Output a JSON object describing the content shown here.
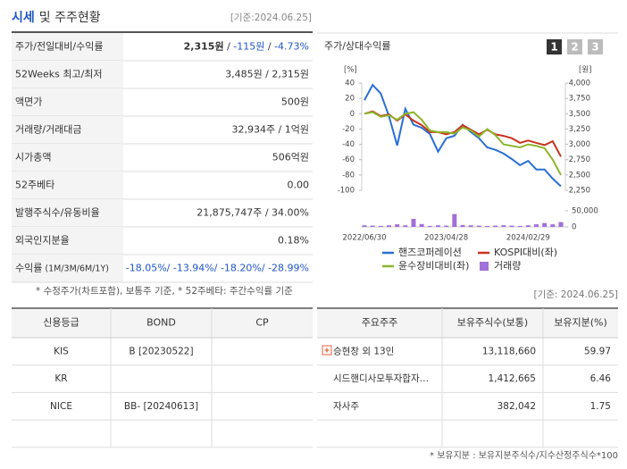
{
  "summary": {
    "title": [
      "시세",
      "및 주주현황"
    ],
    "date": "[기준:2024.06.25]",
    "rows": [
      {
        "label": "주가/전일대비/수익률",
        "value": [
          {
            "text": "2,315원",
            "style": "bold"
          },
          {
            "text": " / "
          },
          {
            "text": "-115원",
            "style": "down"
          },
          {
            "text": " / "
          },
          {
            "text": "-4.73%",
            "style": "down"
          }
        ]
      },
      {
        "label": "52Weeks 최고/최저",
        "value": [
          {
            "text": "3,485원 / 2,315원"
          }
        ]
      },
      {
        "label": "액면가",
        "value": [
          {
            "text": "500원"
          }
        ]
      },
      {
        "label": "거래량/거래대금",
        "value": [
          {
            "text": "32,934주 / 1억원"
          }
        ]
      },
      {
        "label": "시가총액",
        "value": [
          {
            "text": "506억원"
          }
        ]
      },
      {
        "label": "52주베타",
        "value": [
          {
            "text": "0.00"
          }
        ]
      },
      {
        "label": "발행주식수/유동비율",
        "value": [
          {
            "text": "21,875,747주 / 34.00%"
          }
        ]
      },
      {
        "label": "외국인지분율",
        "value": [
          {
            "text": "0.18%"
          }
        ]
      },
      {
        "label": "수익률",
        "label_note": "(1M/3M/6M/1Y)",
        "value": [
          {
            "text": "-18.05%/ -13.94%/ -18.20%/ -28.99%",
            "style": "down"
          }
        ]
      }
    ],
    "note": "* 수정주가(차트포함), 보통주 기준, * 52주베타: 주간수익률 기준",
    "note_date": "[기준: 2024.06.25]"
  },
  "chart_data": {
    "type": "line",
    "title": "주가/상대수익률",
    "buttons": [
      "1",
      "2",
      "3"
    ],
    "active_button": 0,
    "categories": [
      "2022/06/30",
      null,
      null,
      null,
      null,
      null,
      null,
      null,
      null,
      null,
      "2023/04/28",
      null,
      null,
      null,
      null,
      null,
      null,
      null,
      null,
      null,
      "2024/02/29",
      null,
      null,
      null,
      null
    ],
    "series": [
      {
        "name": "핸즈코퍼레이션",
        "color": "#2a6fd4",
        "axis": "y2",
        "values": [
          3720,
          3970,
          3830,
          3460,
          2980,
          3580,
          3320,
          3270,
          3170,
          2880,
          3100,
          3140,
          3320,
          3200,
          3100,
          2950,
          2910,
          2850,
          2760,
          2660,
          2730,
          2590,
          2590,
          2440,
          2315
        ]
      },
      {
        "name": "KOSPI대비(좌)",
        "color": "#c8341e",
        "values": [
          0,
          3,
          -3,
          -1,
          -9,
          -1,
          -9,
          -15,
          -24,
          -24,
          -27,
          -24,
          -15,
          -21,
          -27,
          -21,
          -27,
          -29,
          -32,
          -38,
          -35,
          -38,
          -41,
          -36,
          -56
        ]
      },
      {
        "name": "윤수장비대비(좌)",
        "color": "#8db52c",
        "values": [
          0,
          2,
          -4,
          -2,
          -8,
          0,
          2,
          -8,
          -22,
          -24,
          -24,
          -26,
          -18,
          -22,
          -30,
          -20,
          -28,
          -40,
          -42,
          -44,
          -40,
          -42,
          -45,
          -60,
          -80
        ]
      },
      {
        "name": "거래량",
        "color": "#a070d8",
        "axis": "y3",
        "type": "bar",
        "values": [
          5000,
          4000,
          3000,
          5000,
          8000,
          5000,
          25000,
          9000,
          3000,
          5000,
          4000,
          40000,
          6000,
          5000,
          4000,
          3000,
          4000,
          5000,
          4000,
          3000,
          5000,
          8000,
          12000,
          8000,
          15000
        ]
      }
    ],
    "ylabel": "[%]",
    "ylim": [
      -100,
      40
    ],
    "yticks": [
      40,
      20,
      0,
      -20,
      -40,
      -60,
      -80,
      -100
    ],
    "y2label": "[원]",
    "y2lim": [
      2250,
      4000
    ],
    "y2ticks": [
      {
        "value": 4000,
        "label": "4,000"
      },
      {
        "value": 3750,
        "label": "3,750"
      },
      {
        "value": 3500,
        "label": "3,500"
      },
      {
        "value": 3250,
        "label": "3,250"
      },
      {
        "value": 3000,
        "label": "3,000"
      },
      {
        "value": 2750,
        "label": "2,750"
      },
      {
        "value": 2500,
        "label": "2,500"
      },
      {
        "value": 2250,
        "label": "2,250"
      }
    ],
    "y3lim": [
      0,
      50000
    ],
    "y3ticks": [
      {
        "value": 50000,
        "label": "50,000"
      },
      0
    ]
  },
  "credit": {
    "columns": [
      "신용등급",
      "BOND",
      "CP"
    ],
    "rows": [
      [
        "KIS",
        "B  [20230522]",
        null
      ],
      [
        "KR",
        null,
        null
      ],
      [
        "NICE",
        "BB-  [20240613]",
        null
      ],
      [
        null,
        null,
        null
      ]
    ]
  },
  "holders": {
    "columns": [
      "주요주주",
      "보유주식수(보통)",
      "보유지분(%)"
    ],
    "rows": [
      [
        "승현창 외 13인",
        "13,118,660",
        59.97
      ],
      [
        "시드핸디사모투자합자…",
        "1,412,665",
        6.46
      ],
      [
        "자사주",
        "382,042",
        1.75
      ],
      [
        null,
        null,
        null
      ]
    ],
    "note": "* 보유지분 : 보유지분주식수/지수산정주식수*100"
  }
}
